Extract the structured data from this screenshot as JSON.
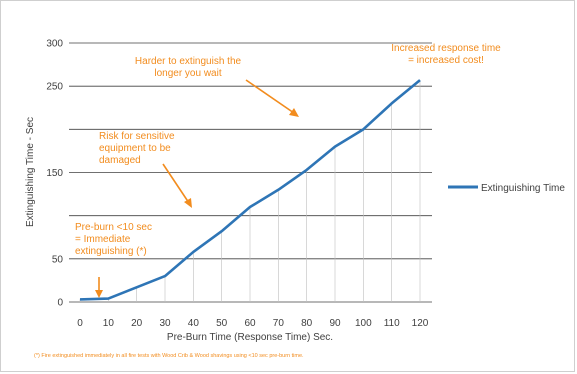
{
  "chart_data": {
    "type": "line",
    "x": [
      0,
      10,
      20,
      30,
      40,
      50,
      60,
      70,
      80,
      90,
      100,
      110,
      120
    ],
    "series": [
      {
        "name": "Extinguishing Time",
        "values": [
          3,
          4,
          17,
          30,
          58,
          82,
          110,
          130,
          153,
          180,
          200,
          230,
          257
        ],
        "color": "#2e75b6"
      }
    ],
    "xlabel": "Pre-Burn Time (Response Time) Sec.",
    "ylabel": "Extinguishing Time - Sec",
    "xlim": [
      0,
      120
    ],
    "ylim": [
      0,
      300
    ],
    "x_ticks": [
      "0",
      "10",
      "20",
      "30",
      "40",
      "50",
      "60",
      "70",
      "80",
      "90",
      "100",
      "110",
      "120"
    ],
    "y_ticks": [
      "0",
      "50",
      "150",
      "250",
      "300"
    ],
    "gridlines_y": [
      0,
      50,
      100,
      150,
      200,
      250,
      300
    ],
    "drop_lines": true,
    "legend": "right",
    "annotations": [
      {
        "lines": [
          "Harder to extinguish the",
          "longer you wait"
        ]
      },
      {
        "lines": [
          "Increased response time",
          "= increased cost!"
        ]
      },
      {
        "lines": [
          "Risk for sensitive",
          "equipment to be",
          "damaged"
        ]
      },
      {
        "lines": [
          "Pre-burn <10 sec",
          "= Immediate",
          "extinguishing (*)"
        ]
      }
    ],
    "footnote": "(*) Fire extinguished immediately in all fire tests with Wood Crib & Wood shavings using <10 sec pre-burn time.",
    "colors": {
      "annotation": "#f28c1e",
      "grid": "#404040",
      "drop_line": "#bfbfbf"
    }
  }
}
